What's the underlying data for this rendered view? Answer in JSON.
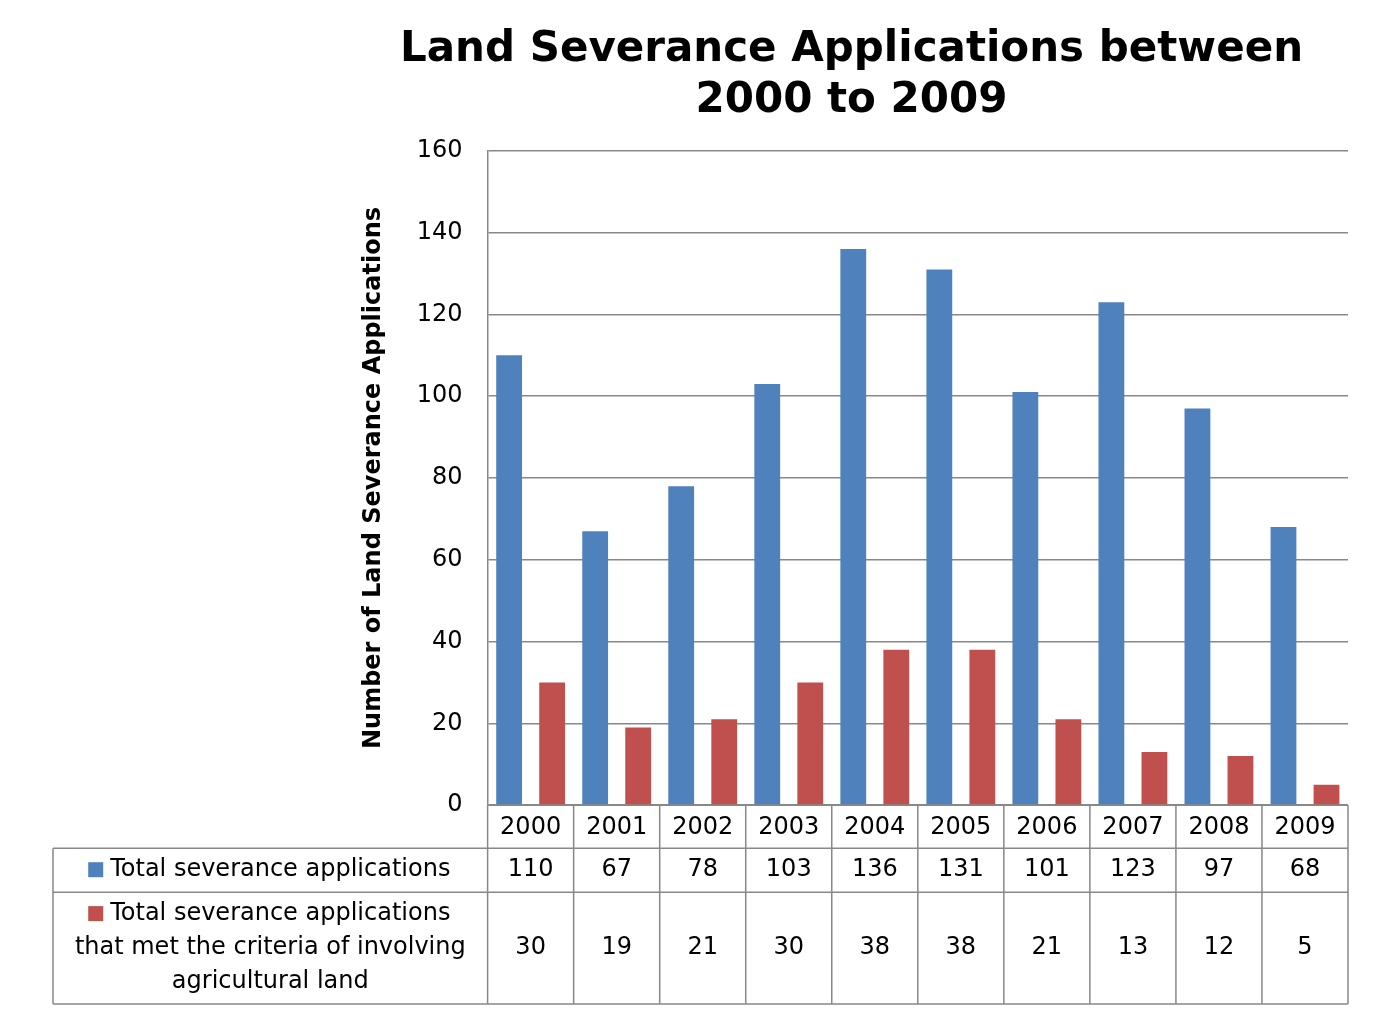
{
  "chart_data": {
    "type": "bar",
    "title": [
      "Land Severance Applications between",
      "2000 to 2009"
    ],
    "ylabel": "Number of Land Severance Applications",
    "categories": [
      "2000",
      "2001",
      "2002",
      "2003",
      "2004",
      "2005",
      "2006",
      "2007",
      "2008",
      "2009"
    ],
    "series": [
      {
        "name": "Total severance applications",
        "color": "#4f81bd",
        "values": [
          110,
          67,
          78,
          103,
          136,
          131,
          101,
          123,
          97,
          68
        ]
      },
      {
        "name": "Total severance applications that met the criteria of involving agricultural land",
        "color": "#c0504d",
        "values": [
          30,
          19,
          21,
          30,
          38,
          38,
          21,
          13,
          12,
          5
        ]
      }
    ],
    "ylim": [
      0,
      160
    ],
    "yticks": [
      0,
      20,
      40,
      60,
      80,
      100,
      120,
      140,
      160
    ],
    "grid": "y",
    "legend": "bottom",
    "data_labels": true
  }
}
